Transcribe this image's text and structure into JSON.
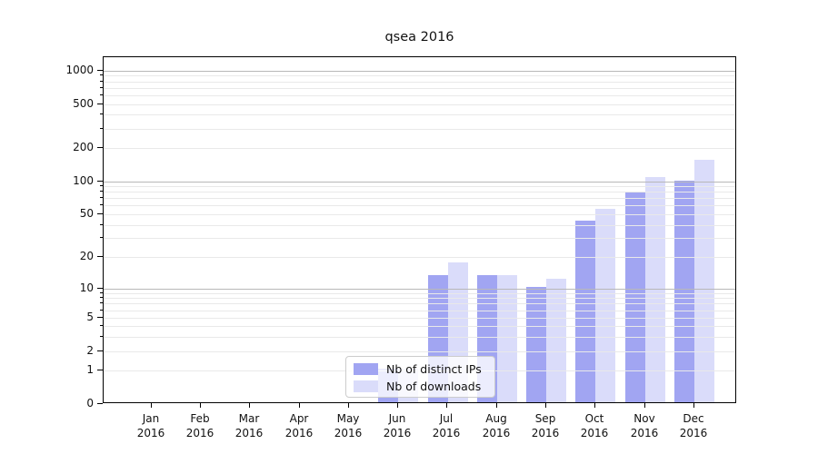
{
  "title": "qsea 2016",
  "chart_data": {
    "type": "bar",
    "title": "qsea 2016",
    "categories": [
      "Jan 2016",
      "Feb 2016",
      "Mar 2016",
      "Apr 2016",
      "May 2016",
      "Jun 2016",
      "Jul 2016",
      "Aug 2016",
      "Sep 2016",
      "Oct 2016",
      "Nov 2016",
      "Dec 2016"
    ],
    "months": [
      "Jan",
      "Feb",
      "Mar",
      "Apr",
      "May",
      "Jun",
      "Jul",
      "Aug",
      "Sep",
      "Oct",
      "Nov",
      "Dec"
    ],
    "year_label": "2016",
    "series": [
      {
        "name": "Nb of distinct IPs",
        "color": "#a1a5f2",
        "values": [
          0,
          0,
          0,
          0,
          0,
          1,
          13,
          13,
          10,
          42,
          77,
          97
        ]
      },
      {
        "name": "Nb of downloads",
        "color": "#dadcfa",
        "values": [
          0,
          0,
          0,
          0,
          0,
          1,
          17,
          13,
          12,
          54,
          105,
          150
        ]
      }
    ],
    "xlabel": "",
    "ylabel": "",
    "y_scale": "log1p",
    "y_ticks": [
      0,
      1,
      2,
      5,
      10,
      20,
      50,
      100,
      200,
      500,
      1000
    ],
    "ylim": [
      0,
      1320
    ],
    "grid": "horizontal",
    "gridlines_minor": [
      1,
      2,
      3,
      4,
      5,
      6,
      7,
      8,
      9,
      20,
      30,
      40,
      50,
      60,
      70,
      80,
      90,
      200,
      300,
      400,
      500,
      600,
      700,
      800,
      900
    ],
    "gridlines_major": [
      10,
      100,
      1000
    ],
    "legend_position": "lower-center",
    "legend_entries": [
      "Nb of distinct IPs",
      "Nb of downloads"
    ]
  },
  "colors": {
    "bar_dark": "#a1a5f2",
    "bar_light": "#dadcfa",
    "grid_minor": "#e9e9e9",
    "grid_major": "#b8b8b8",
    "axis": "#000000",
    "text": "#111111",
    "legend_border": "#cccccc"
  }
}
